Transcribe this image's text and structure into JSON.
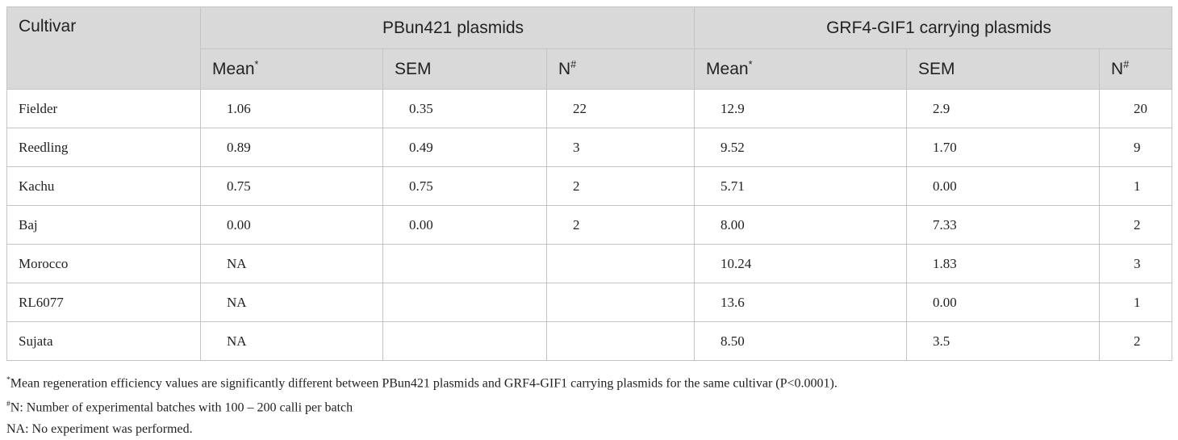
{
  "table": {
    "header": {
      "cultivar": "Cultivar",
      "groups": [
        "PBun421 plasmids",
        "GRF4-GIF1 carrying plasmids"
      ],
      "subcolumns": [
        {
          "text": "Mean",
          "sup": "*"
        },
        {
          "text": "SEM"
        },
        {
          "text": "N",
          "sup": "#"
        },
        {
          "text": "Mean",
          "sup": "*"
        },
        {
          "text": "SEM"
        },
        {
          "text": "N",
          "sup": "#"
        }
      ]
    },
    "rows": [
      [
        "Fielder",
        "1.06",
        "0.35",
        "22",
        "12.9",
        "2.9",
        "20"
      ],
      [
        "Reedling",
        "0.89",
        "0.49",
        "3",
        "9.52",
        "1.70",
        "9"
      ],
      [
        "Kachu",
        "0.75",
        "0.75",
        "2",
        "5.71",
        "0.00",
        "1"
      ],
      [
        "Baj",
        "0.00",
        "0.00",
        "2",
        "8.00",
        "7.33",
        "2"
      ],
      [
        "Morocco",
        "NA",
        null,
        null,
        "10.24",
        "1.83",
        "3"
      ],
      [
        "RL6077",
        "NA",
        null,
        null,
        "13.6",
        "0.00",
        "1"
      ],
      [
        "Sujata",
        "NA",
        null,
        null,
        "8.50",
        "3.5",
        "2"
      ]
    ]
  },
  "footnotes": [
    {
      "mark": "*",
      "text": "Mean regeneration efficiency values are significantly different between PBun421 plasmids and GRF4-GIF1 carrying plasmids for the same cultivar (P<0.0001)."
    },
    {
      "mark": "#",
      "text": "N: Number of experimental batches with 100 – 200 calli per batch"
    },
    {
      "text": "NA: No experiment was performed."
    }
  ]
}
